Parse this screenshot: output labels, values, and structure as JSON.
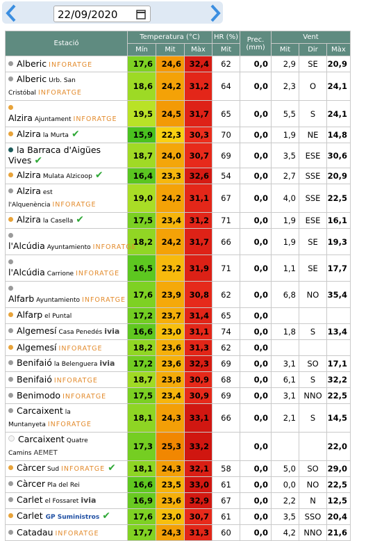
{
  "date": "22/09/2020",
  "header": {
    "station": "Estació",
    "temperature": "Temperatura (°C)",
    "humidity": "HR (%)",
    "precipitation": "Prec. (mm)",
    "wind": "Vent",
    "t_min": "Mín",
    "t_mit": "Mit",
    "t_max": "Màx",
    "hr_mit": "Mit",
    "w_mit": "Mit",
    "w_dir": "Dir",
    "w_max": "Màx"
  },
  "rows": [
    {
      "dot": "#9a9a9a",
      "name": "Alberic",
      "brand": "INFORATGE",
      "min": "17,6",
      "mit": "24,6",
      "max": "32,4",
      "hr": "62",
      "prec": "0,0",
      "wmit": "2,9",
      "dir": "SE",
      "wmax": "20,9"
    },
    {
      "dot": "#9a9a9a",
      "name": "Alberic",
      "place": "Urb. San Cristóbal",
      "brand": "INFORATGE",
      "min": "18,6",
      "mit": "24,2",
      "max": "31,2",
      "hr": "64",
      "prec": "0,0",
      "wmit": "2,3",
      "dir": "O",
      "wmax": "24,1"
    },
    {
      "dot": "#e8a33a",
      "name": "Alzira",
      "place": "Ajuntament",
      "brand": "INFORATGE",
      "min": "19,5",
      "mit": "24,5",
      "max": "31,7",
      "hr": "65",
      "prec": "0,0",
      "wmit": "5,5",
      "dir": "S",
      "wmax": "24,1"
    },
    {
      "dot": "#e8a33a",
      "name": "Alzira",
      "place": "la Murta",
      "check": true,
      "min": "15,9",
      "mit": "22,3",
      "max": "30,3",
      "hr": "70",
      "prec": "0,0",
      "wmit": "1,9",
      "dir": "NE",
      "wmax": "14,8"
    },
    {
      "dot": "#1f5c5c",
      "name": "la Barraca d'Aigües Vives",
      "check": true,
      "min": "18,7",
      "mit": "24,0",
      "max": "30,7",
      "hr": "69",
      "prec": "0,0",
      "wmit": "3,5",
      "dir": "ESE",
      "wmax": "30,6"
    },
    {
      "dot": "#e8a33a",
      "name": "Alzira",
      "place": "Mulata Alzicoop",
      "check": true,
      "min": "16,4",
      "mit": "23,3",
      "max": "32,6",
      "hr": "54",
      "prec": "0,0",
      "wmit": "2,7",
      "dir": "SSE",
      "wmax": "20,9"
    },
    {
      "dot": "#9a9a9a",
      "name": "Alzira",
      "place": "est l'Alquenència",
      "brand": "INFORATGE",
      "min": "19,0",
      "mit": "24,2",
      "max": "31,1",
      "hr": "67",
      "prec": "0,0",
      "wmit": "4,0",
      "dir": "SSE",
      "wmax": "22,5"
    },
    {
      "dot": "#e8a33a",
      "name": "Alzira",
      "place": "la Casella",
      "check": true,
      "min": "17,5",
      "mit": "23,4",
      "max": "31,2",
      "hr": "71",
      "prec": "0,0",
      "wmit": "1,9",
      "dir": "ESE",
      "wmax": "16,1"
    },
    {
      "dot": "#9a9a9a",
      "name": "l'Alcúdia",
      "place": "Ayuntamiento",
      "brand": "INFORATGE",
      "min": "18,2",
      "mit": "24,2",
      "max": "31,7",
      "hr": "66",
      "prec": "0,0",
      "wmit": "1,9",
      "dir": "SE",
      "wmax": "19,3"
    },
    {
      "dot": "#9a9a9a",
      "name": "l'Alcúdia",
      "place": "Carrione",
      "brand": "INFORATGE",
      "min": "16,5",
      "mit": "23,2",
      "max": "31,9",
      "hr": "71",
      "prec": "0,0",
      "wmit": "1,1",
      "dir": "SE",
      "wmax": "17,7"
    },
    {
      "dot": "#9a9a9a",
      "name": "Alfarb",
      "place": "Ayuntamiento",
      "brand": "INFORATGE",
      "min": "17,6",
      "mit": "23,9",
      "max": "30,8",
      "hr": "62",
      "prec": "0,0",
      "wmit": "6,8",
      "dir": "NO",
      "wmax": "35,4"
    },
    {
      "dot": "#e8a33a",
      "name": "Alfarp",
      "place": "el Puntal",
      "min": "17,2",
      "mit": "23,7",
      "max": "31,4",
      "hr": "65",
      "prec": "0,0",
      "wmit": null,
      "dir": null,
      "wmax": null
    },
    {
      "dot": "#9a9a9a",
      "name": "Algemesí",
      "place": "Casa Penedés",
      "brand": "ivia",
      "min": "16,6",
      "mit": "23,0",
      "max": "31,1",
      "hr": "74",
      "prec": "0,0",
      "wmit": "1,8",
      "dir": "S",
      "wmax": "13,4"
    },
    {
      "dot": "#e8a33a",
      "name": "Algemesí",
      "brand": "INFORATGE",
      "min": "18,2",
      "mit": "23,6",
      "max": "31,3",
      "hr": "62",
      "prec": "0,0",
      "wmit": null,
      "dir": null,
      "wmax": null
    },
    {
      "dot": "#9a9a9a",
      "name": "Benifaió",
      "place": "la Belenguera",
      "brand": "ivia",
      "min": "17,2",
      "mit": "23,6",
      "max": "32,3",
      "hr": "69",
      "prec": "0,0",
      "wmit": "3,1",
      "dir": "SO",
      "wmax": "17,1"
    },
    {
      "dot": "#9a9a9a",
      "name": "Benifaió",
      "brand": "INFORATGE",
      "min": "18,7",
      "mit": "23,8",
      "max": "30,9",
      "hr": "68",
      "prec": "0,0",
      "wmit": "6,1",
      "dir": "S",
      "wmax": "32,2"
    },
    {
      "dot": "#9a9a9a",
      "name": "Benimodo",
      "brand": "INFORATGE",
      "min": "17,5",
      "mit": "23,4",
      "max": "30,9",
      "hr": "69",
      "prec": "0,0",
      "wmit": "3,1",
      "dir": "NNO",
      "wmax": "22,5"
    },
    {
      "dot": "#9a9a9a",
      "name": "Carcaixent",
      "place": "la Muntanyeta",
      "brand": "INFORATGE",
      "min": "18,1",
      "mit": "24,3",
      "max": "33,1",
      "hr": "66",
      "prec": "0,0",
      "wmit": "2,1",
      "dir": "S",
      "wmax": "14,5"
    },
    {
      "dot": "#f4f4f4",
      "name": "Carcaixent",
      "place": "Quatre Camins",
      "brand": "AEMET",
      "min": "17,3",
      "mit": "25,3",
      "max": "33,2",
      "hr": null,
      "prec": "0,0",
      "wmit": null,
      "dir": null,
      "wmax": "22,0"
    },
    {
      "dot": "#e8a33a",
      "name": "Càrcer",
      "place": "Sud",
      "brand": "INFORATGE",
      "check": true,
      "min": "18,1",
      "mit": "24,3",
      "max": "32,1",
      "hr": "58",
      "prec": "0,0",
      "wmit": "5,0",
      "dir": "SO",
      "wmax": "29,0"
    },
    {
      "dot": "#9a9a9a",
      "name": "Càrcer",
      "place": "Pla del Rei",
      "min": "16,6",
      "mit": "23,5",
      "max": "33,0",
      "hr": "61",
      "prec": "0,0",
      "wmit": "0,0",
      "dir": "NO",
      "wmax": "22,5"
    },
    {
      "dot": "#9a9a9a",
      "name": "Carlet",
      "place": "el Fossaret",
      "brand": "ivia",
      "min": "16,9",
      "mit": "23,6",
      "max": "32,9",
      "hr": "67",
      "prec": "0,0",
      "wmit": "2,2",
      "dir": "N",
      "wmax": "12,5"
    },
    {
      "dot": "#e8a33a",
      "name": "Carlet",
      "brand": "GP Suministros",
      "check": true,
      "min": "17,6",
      "mit": "23,0",
      "max": "30,7",
      "hr": "61",
      "prec": "0,0",
      "wmit": "3,5",
      "dir": "SSO",
      "wmax": "20,4"
    },
    {
      "dot": "#9a9a9a",
      "name": "Catadau",
      "brand": "INFORATGE",
      "min": "17,7",
      "mit": "24,3",
      "max": "31,3",
      "hr": "60",
      "prec": "0,0",
      "wmit": "4,2",
      "dir": "NNO",
      "wmax": "21,6"
    }
  ]
}
